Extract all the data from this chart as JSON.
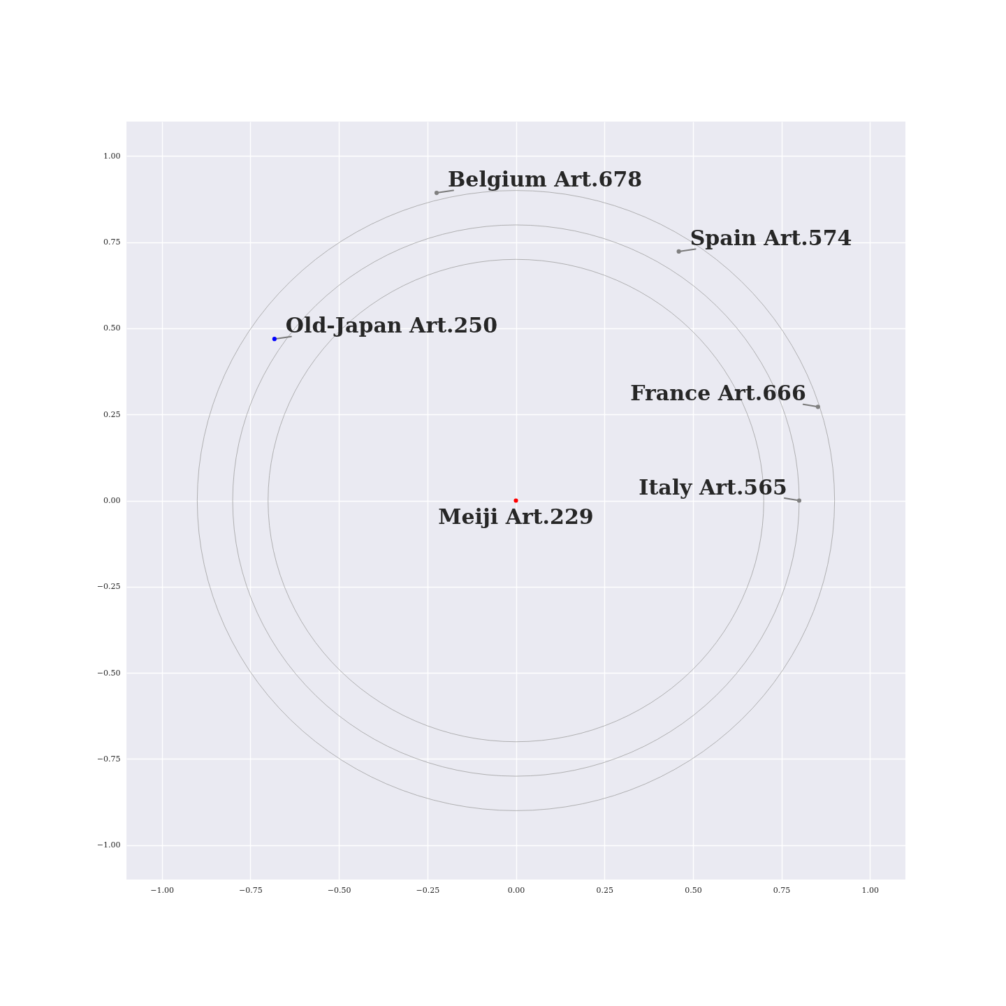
{
  "chart_data": {
    "type": "scatter",
    "xlim": [
      -1.1,
      1.1
    ],
    "ylim": [
      -1.1,
      1.1
    ],
    "grid": true,
    "marker": "circle",
    "xticks": [
      {
        "value": -1,
        "label": "−1.00"
      },
      {
        "value": -0.75,
        "label": "−0.75"
      },
      {
        "value": -0.5,
        "label": "−0.50"
      },
      {
        "value": -0.25,
        "label": "−0.25"
      },
      {
        "value": 0,
        "label": "0.00"
      },
      {
        "value": 0.25,
        "label": "0.25"
      },
      {
        "value": 0.5,
        "label": "0.50"
      },
      {
        "value": 0.75,
        "label": "0.75"
      },
      {
        "value": 1,
        "label": "1.00"
      }
    ],
    "yticks": [
      {
        "value": -1,
        "label": "−1.00"
      },
      {
        "value": -0.75,
        "label": "−0.75"
      },
      {
        "value": -0.5,
        "label": "−0.50"
      },
      {
        "value": -0.25,
        "label": "−0.25"
      },
      {
        "value": 0,
        "label": "0.00"
      },
      {
        "value": 0.25,
        "label": "0.25"
      },
      {
        "value": 0.5,
        "label": "0.50"
      },
      {
        "value": 0.75,
        "label": "0.75"
      },
      {
        "value": 1,
        "label": "1.00"
      }
    ],
    "x": [
      0,
      0.8,
      0.853,
      0.46,
      -0.224,
      -0.682
    ],
    "values": [
      0,
      0,
      0.272,
      0.723,
      0.893,
      0.469
    ],
    "colors": [
      "#ff0000",
      "#808080",
      "#808080",
      "#808080",
      "#808080",
      "#0000ff"
    ],
    "annotations": [
      {
        "text": "Meiji Art.229",
        "x": 0,
        "y": 0
      },
      {
        "text": "Italy Art.565",
        "x": 0.8,
        "y": 0
      },
      {
        "text": "France Art.666",
        "x": 0.853,
        "y": 0.272
      },
      {
        "text": "Spain Art.574",
        "x": 0.46,
        "y": 0.723
      },
      {
        "text": "Belgium Art.678",
        "x": -0.224,
        "y": 0.893
      },
      {
        "text": "Old-Japan Art.250",
        "x": -0.682,
        "y": 0.469
      }
    ]
  }
}
